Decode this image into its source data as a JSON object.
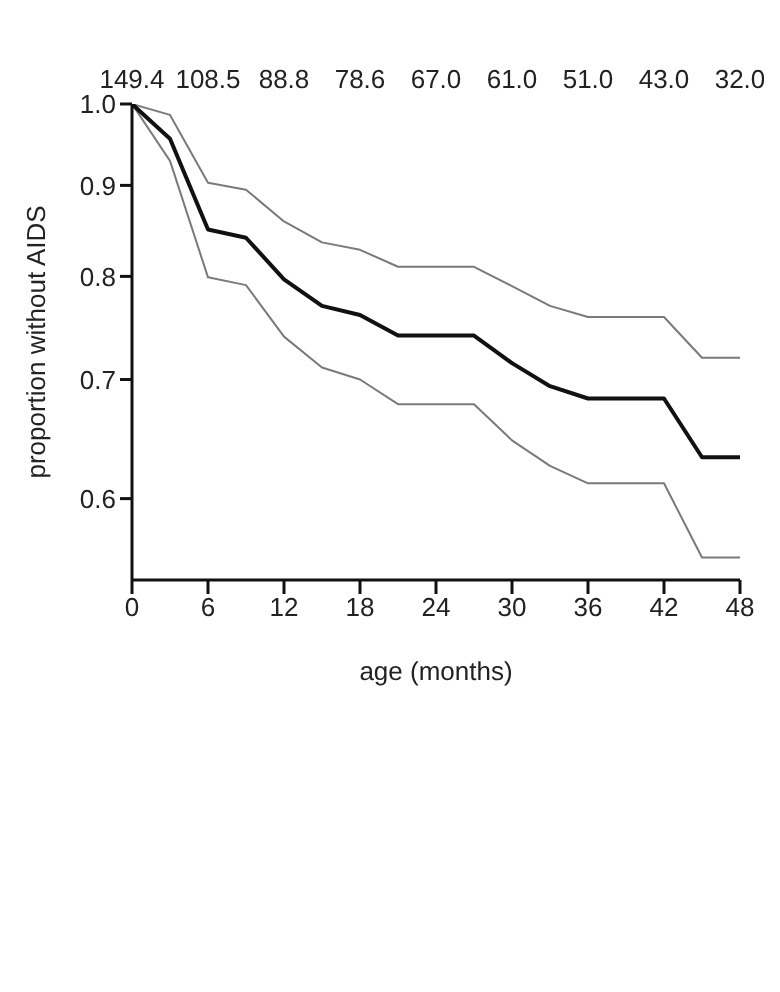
{
  "chart_data": {
    "type": "line",
    "xlabel": "age  (months)",
    "ylabel": "proportion  without  AIDS",
    "xlim": [
      0,
      48
    ],
    "xticks": [
      0,
      6,
      12,
      18,
      24,
      30,
      36,
      42,
      48
    ],
    "annotations": [
      "149.4",
      "108.5",
      "88.8",
      "78.6",
      "67.0",
      "61.0",
      "51.0",
      "43.0",
      "32.0"
    ],
    "ylim": [
      0.54,
      1.0
    ],
    "yticks": [
      {
        "value": 1.0,
        "label": "1.0"
      },
      {
        "value": 0.9,
        "label": "0.9"
      },
      {
        "value": 0.8,
        "label": "0.8"
      },
      {
        "value": 0.7,
        "label": "0.7"
      },
      {
        "value": 0.6,
        "label": "0.6"
      }
    ],
    "log": "y",
    "marker": "none",
    "line_style": "solid",
    "legend": false,
    "x": [
      0,
      3,
      6,
      9,
      12,
      15,
      18,
      21,
      27,
      30,
      33,
      36,
      42,
      45,
      48
    ],
    "series": [
      {
        "color": "#7a7a7a",
        "values": [
          1.0,
          0.986,
          0.903,
          0.895,
          0.859,
          0.836,
          0.828,
          0.81,
          0.81,
          0.79,
          0.77,
          0.759,
          0.759,
          0.72,
          0.72
        ]
      },
      {
        "color": "#7a7a7a",
        "values": [
          1.0,
          0.929,
          0.799,
          0.791,
          0.74,
          0.711,
          0.7,
          0.678,
          0.678,
          0.647,
          0.626,
          0.612,
          0.612,
          0.556,
          0.556
        ]
      },
      {
        "color": "#111111",
        "values": [
          1.0,
          0.956,
          0.85,
          0.841,
          0.797,
          0.77,
          0.761,
          0.741,
          0.741,
          0.715,
          0.694,
          0.683,
          0.683,
          0.633,
          0.633
        ]
      }
    ]
  }
}
